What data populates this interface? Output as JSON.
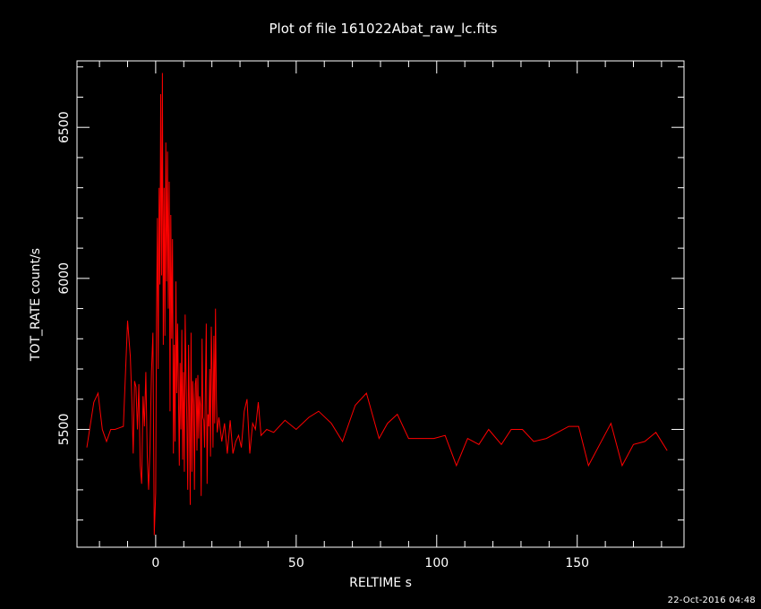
{
  "chart_data": {
    "type": "line",
    "title": "Plot of file 161022Abat_raw_lc.fits",
    "xlabel": "RELTIME  s",
    "ylabel": "TOT_RATE  count/s",
    "xlim": [
      -28,
      188
    ],
    "ylim": [
      5110,
      6720
    ],
    "x_ticks": [
      0,
      50,
      100,
      150
    ],
    "y_ticks": [
      5500,
      6000,
      6500
    ],
    "x_minor_step": 10,
    "y_minor_step": 100,
    "background_color": "#000000",
    "axis_color": "#ffffff",
    "grid": false,
    "series": [
      {
        "color": "#ff0000",
        "x": [
          -24.5,
          -22.0,
          -20.5,
          -19.0,
          -17.5,
          -16.0,
          -14.5,
          -13.0,
          -11.5,
          -10.0,
          -9.0,
          -8.5,
          -8.0,
          -7.5,
          -7.0,
          -6.5,
          -6.0,
          -5.5,
          -5.0,
          -4.5,
          -4.0,
          -3.5,
          -3.0,
          -2.5,
          -2.0,
          -1.5,
          -1.0,
          -0.5,
          0.0,
          0.3,
          0.6,
          0.9,
          1.2,
          1.5,
          1.8,
          2.1,
          2.4,
          2.7,
          3.0,
          3.3,
          3.6,
          3.9,
          4.2,
          4.5,
          4.8,
          5.1,
          5.4,
          5.7,
          6.0,
          6.3,
          6.6,
          6.9,
          7.2,
          7.5,
          7.8,
          8.1,
          8.4,
          8.7,
          9.0,
          9.3,
          9.6,
          9.9,
          10.2,
          10.5,
          10.8,
          11.1,
          11.4,
          11.7,
          12.0,
          12.3,
          12.6,
          12.9,
          13.2,
          13.5,
          13.8,
          14.1,
          14.4,
          14.7,
          15.0,
          15.3,
          15.6,
          15.9,
          16.2,
          16.5,
          16.8,
          17.1,
          17.4,
          17.7,
          18.0,
          18.3,
          18.6,
          18.9,
          19.2,
          19.5,
          19.8,
          20.1,
          20.4,
          20.7,
          21.0,
          21.3,
          21.6,
          21.9,
          22.5,
          23.5,
          24.5,
          25.5,
          26.5,
          27.5,
          28.5,
          29.5,
          30.5,
          31.5,
          32.5,
          33.5,
          34.5,
          35.5,
          36.5,
          37.5,
          39.5,
          42.0,
          46.0,
          50.0,
          54.5,
          58.0,
          62.5,
          66.5,
          71.0,
          75.0,
          79.5,
          82.5,
          86.0,
          90.0,
          94.5,
          99.0,
          103.0,
          107.0,
          111.0,
          115.0,
          118.5,
          123.0,
          126.5,
          130.5,
          134.5,
          139.0,
          143.0,
          147.0,
          150.5,
          154.0,
          158.0,
          162.0,
          166.0,
          170.0,
          174.0,
          178.0,
          182.0
        ],
        "y": [
          5440,
          5590,
          5620,
          5500,
          5460,
          5500,
          5500,
          5505,
          5510,
          5860,
          5740,
          5600,
          5420,
          5660,
          5640,
          5500,
          5650,
          5380,
          5320,
          5610,
          5510,
          5690,
          5410,
          5300,
          5450,
          5690,
          5820,
          5150,
          5290,
          5860,
          6200,
          5700,
          6300,
          5980,
          6610,
          6010,
          6680,
          5780,
          6300,
          5810,
          6450,
          5990,
          6420,
          5900,
          6320,
          5560,
          6210,
          5800,
          6130,
          5420,
          5780,
          5460,
          5990,
          5620,
          5850,
          5620,
          5380,
          5720,
          5500,
          5830,
          5400,
          5690,
          5360,
          5880,
          5680,
          5530,
          5300,
          5780,
          5540,
          5250,
          5820,
          5360,
          5660,
          5580,
          5300,
          5650,
          5670,
          5430,
          5680,
          5470,
          5610,
          5580,
          5280,
          5800,
          5540,
          5530,
          5440,
          5630,
          5850,
          5320,
          5550,
          5510,
          5700,
          5410,
          5840,
          5680,
          5440,
          5810,
          5520,
          5900,
          5600,
          5490,
          5540,
          5460,
          5520,
          5420,
          5530,
          5420,
          5460,
          5480,
          5440,
          5560,
          5600,
          5420,
          5520,
          5500,
          5590,
          5480,
          5500,
          5490,
          5530,
          5500,
          5540,
          5560,
          5520,
          5460,
          5580,
          5620,
          5470,
          5520,
          5550,
          5470,
          5470,
          5470,
          5480,
          5380,
          5470,
          5450,
          5500,
          5450,
          5500,
          5500,
          5460,
          5470,
          5490,
          5510,
          5510,
          5380,
          5450,
          5520,
          5380,
          5450,
          5460,
          5490,
          5430
        ]
      }
    ]
  },
  "datestamp": "22-Oct-2016 04:48"
}
